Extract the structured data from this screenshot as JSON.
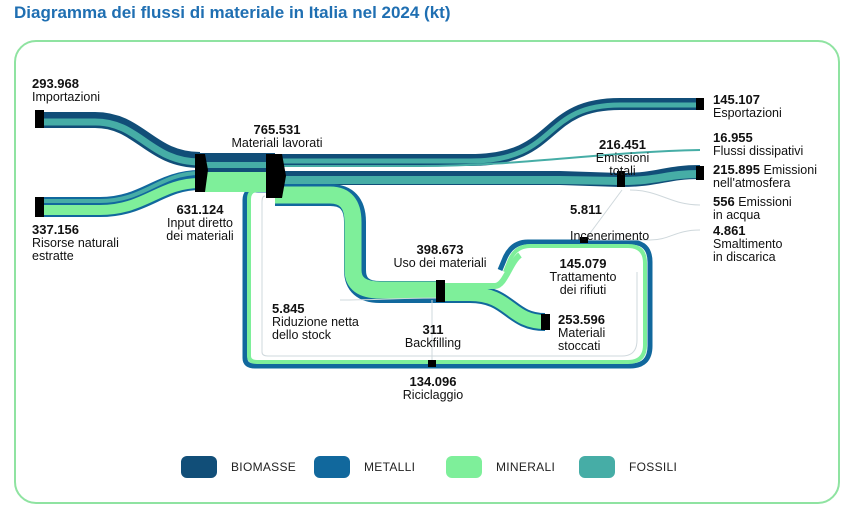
{
  "title": "Diagramma dei flussi di materiale in Italia nel 2024 (kt)",
  "colors": {
    "biomasse": "#114e78",
    "metalli": "#11689d",
    "minerali": "#7eef9a",
    "fossili": "#46ada6",
    "node": "#000000",
    "frame": "#8fe3a1"
  },
  "nodes": {
    "importazioni": {
      "value": "293.968",
      "label": "Importazioni"
    },
    "risorse": {
      "value": "337.156",
      "label1": "Risorse naturali",
      "label2": "estratte"
    },
    "materiali_lavorati": {
      "value": "765.531",
      "label": "Materiali lavorati"
    },
    "input_diretto": {
      "value": "631.124",
      "label1": "Input diretto",
      "label2": "dei materiali"
    },
    "esportazioni": {
      "value": "145.107",
      "label": "Esportazioni"
    },
    "flussi_dissipativi": {
      "value": "16.955",
      "label": "Flussi dissipativi"
    },
    "emissioni_totali": {
      "value": "216.451",
      "label1": "Emissioni",
      "label2": "totali"
    },
    "emissioni_atmosfera": {
      "value": "215.895",
      "label1": "Emissioni",
      "label2": "nell'atmosfera"
    },
    "emissioni_acqua": {
      "value": "556",
      "label1": "Emissioni",
      "label2": "in acqua"
    },
    "incenerimento": {
      "value": "5.811",
      "label": "Incenerimento"
    },
    "smaltimento": {
      "value": "4.861",
      "label1": "Smaltimento",
      "label2": "in discarica"
    },
    "uso_materiali": {
      "value": "398.673",
      "label": "Uso dei materiali"
    },
    "trattamento": {
      "value": "145.079",
      "label1": "Trattamento",
      "label2": "dei rifiuti"
    },
    "riduzione": {
      "value": "5.845",
      "label1": "Riduzione netta",
      "label2": "dello stock"
    },
    "backfilling": {
      "value": "311",
      "label": "Backfilling"
    },
    "materiali_stoccati": {
      "value": "253.596",
      "label1": "Materiali",
      "label2": "stoccati"
    },
    "riciclaggio": {
      "value": "134.096",
      "label": "Riciclaggio"
    }
  },
  "legend": [
    {
      "label": "BIOMASSE",
      "color": "#114e78"
    },
    {
      "label": "METALLI",
      "color": "#11689d"
    },
    {
      "label": "MINERALI",
      "color": "#7eef9a"
    },
    {
      "label": "FOSSILI",
      "color": "#46ada6"
    }
  ]
}
